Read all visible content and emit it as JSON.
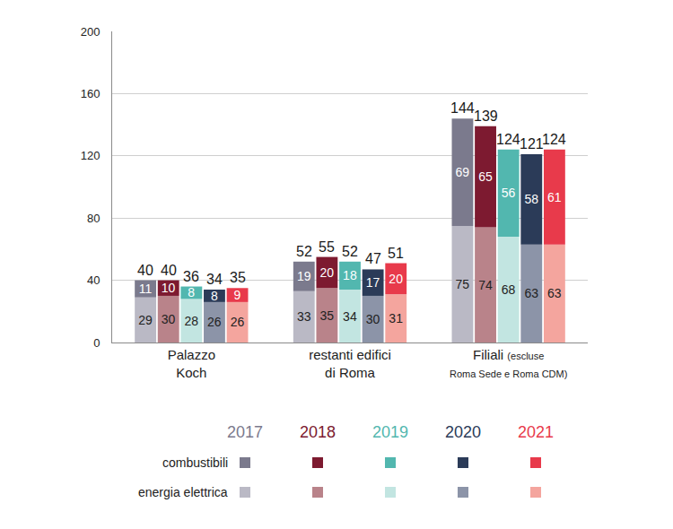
{
  "chart_data": {
    "type": "bar",
    "stacked": true,
    "data_labels": true,
    "grid": true,
    "legend": "bottom",
    "tick_labels": true,
    "categories": [
      "Palazzo\nKoch",
      "restanti edifici\ndi Roma",
      "Filiali (escluse\nRoma Sede e Roma CDM)"
    ],
    "ylim": [
      0,
      200
    ],
    "yticks": [
      0,
      40,
      80,
      120,
      160,
      200
    ],
    "years": [
      {
        "name": "2017",
        "totals": [
          40,
          52,
          144
        ],
        "series": [
          {
            "name": "energia elettrica",
            "color": "#bab9c5",
            "values": [
              29,
              33,
              75
            ]
          },
          {
            "name": "combustibili",
            "color": "#7b7a8d",
            "values": [
              11,
              19,
              69
            ]
          }
        ]
      },
      {
        "name": "2018",
        "totals": [
          40,
          55,
          139
        ],
        "series": [
          {
            "name": "energia elettrica",
            "color": "#b9838a",
            "values": [
              30,
              35,
              74
            ]
          },
          {
            "name": "combustibili",
            "color": "#7d1a30",
            "values": [
              10,
              20,
              65
            ]
          }
        ]
      },
      {
        "name": "2019",
        "totals": [
          36,
          52,
          124
        ],
        "series": [
          {
            "name": "energia elettrica",
            "color": "#c2e5e1",
            "values": [
              28,
              34,
              68
            ]
          },
          {
            "name": "combustibili",
            "color": "#52b7af",
            "values": [
              8,
              18,
              56
            ]
          }
        ]
      },
      {
        "name": "2020",
        "totals": [
          34,
          47,
          121
        ],
        "series": [
          {
            "name": "energia elettrica",
            "color": "#8c94a8",
            "values": [
              26,
              30,
              63
            ]
          },
          {
            "name": "combustibili",
            "color": "#2b3b58",
            "values": [
              8,
              17,
              58
            ]
          }
        ]
      },
      {
        "name": "2021",
        "totals": [
          35,
          51,
          124
        ],
        "series": [
          {
            "name": "energia elettrica",
            "color": "#f4a59e",
            "values": [
              26,
              31,
              63
            ]
          },
          {
            "name": "combustibili",
            "color": "#e83a4b",
            "values": [
              9,
              20,
              61
            ]
          }
        ]
      }
    ]
  }
}
